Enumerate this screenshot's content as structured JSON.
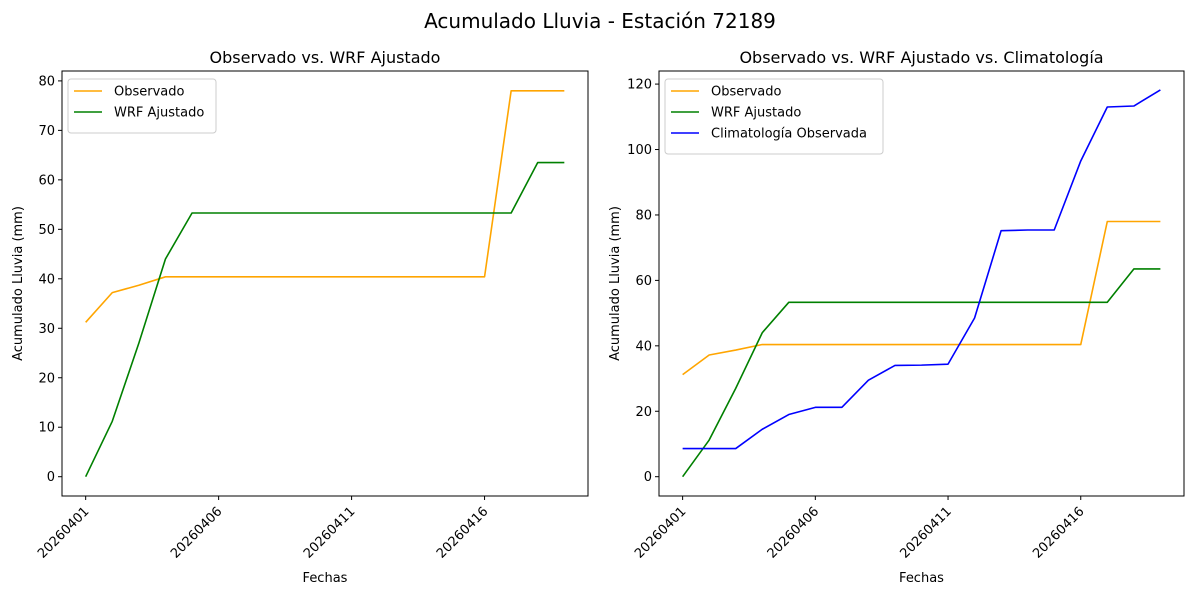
{
  "figure": {
    "suptitle": "Acumulado Lluvia - Estación 72189"
  },
  "chart_data": [
    {
      "type": "line",
      "title": "Observado vs. WRF Ajustado",
      "xlabel": "Fechas",
      "ylabel": "Acumulado Lluvia (mm)",
      "x": [
        "20260401",
        "20260402",
        "20260403",
        "20260404",
        "20260405",
        "20260406",
        "20260407",
        "20260408",
        "20260409",
        "20260410",
        "20260411",
        "20260412",
        "20260413",
        "20260414",
        "20260415",
        "20260416",
        "20260417",
        "20260418",
        "20260419"
      ],
      "xticks": [
        "20260401",
        "20260406",
        "20260411",
        "20260416"
      ],
      "ylim": [
        -3.9,
        82
      ],
      "yticks": [
        0,
        10,
        20,
        30,
        40,
        50,
        60,
        70,
        80
      ],
      "legend_position": "upper-left",
      "grid": false,
      "series": [
        {
          "name": "Observado",
          "color": "#ffa500",
          "values": [
            31.2,
            37.2,
            38.7,
            40.4,
            40.4,
            40.4,
            40.4,
            40.4,
            40.4,
            40.4,
            40.4,
            40.4,
            40.4,
            40.4,
            40.4,
            40.4,
            78.0,
            78.0,
            78.0
          ]
        },
        {
          "name": "WRF Ajustado",
          "color": "#008000",
          "values": [
            0.0,
            11.2,
            27.0,
            44.0,
            53.3,
            53.3,
            53.3,
            53.3,
            53.3,
            53.3,
            53.3,
            53.3,
            53.3,
            53.3,
            53.3,
            53.3,
            53.3,
            63.5,
            63.5
          ]
        }
      ]
    },
    {
      "type": "line",
      "title": "Observado vs. WRF Ajustado vs. Climatología",
      "xlabel": "Fechas",
      "ylabel": "Acumulado Lluvia (mm)",
      "x": [
        "20260401",
        "20260402",
        "20260403",
        "20260404",
        "20260405",
        "20260406",
        "20260407",
        "20260408",
        "20260409",
        "20260410",
        "20260411",
        "20260412",
        "20260413",
        "20260414",
        "20260415",
        "20260416",
        "20260417",
        "20260418",
        "20260419"
      ],
      "xticks": [
        "20260401",
        "20260406",
        "20260411",
        "20260416"
      ],
      "ylim": [
        -5.9,
        124
      ],
      "yticks": [
        0,
        20,
        40,
        60,
        80,
        100,
        120
      ],
      "legend_position": "upper-left",
      "grid": false,
      "series": [
        {
          "name": "Observado",
          "color": "#ffa500",
          "values": [
            31.2,
            37.2,
            38.7,
            40.4,
            40.4,
            40.4,
            40.4,
            40.4,
            40.4,
            40.4,
            40.4,
            40.4,
            40.4,
            40.4,
            40.4,
            40.4,
            78.0,
            78.0,
            78.0
          ]
        },
        {
          "name": "WRF Ajustado",
          "color": "#008000",
          "values": [
            0.0,
            11.2,
            27.0,
            44.0,
            53.3,
            53.3,
            53.3,
            53.3,
            53.3,
            53.3,
            53.3,
            53.3,
            53.3,
            53.3,
            53.3,
            53.3,
            53.3,
            63.5,
            63.5
          ]
        },
        {
          "name": "Climatología Observada",
          "color": "#0000ff",
          "values": [
            8.6,
            8.6,
            8.6,
            14.5,
            19.0,
            21.2,
            21.2,
            29.5,
            34.0,
            34.1,
            34.4,
            48.5,
            75.2,
            75.4,
            75.4,
            96.5,
            113.0,
            113.3,
            118.2
          ]
        }
      ]
    }
  ]
}
